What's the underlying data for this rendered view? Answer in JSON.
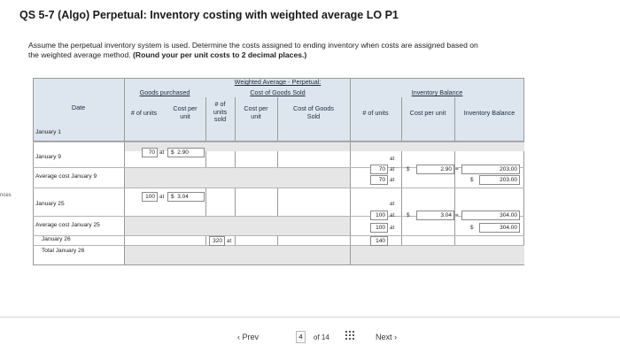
{
  "title": "QS 5-7 (Algo) Perpetual: Inventory costing with weighted average LO P1",
  "instructions": {
    "line1": "Assume the perpetual inventory system is used. Determine the costs assigned to ending inventory when costs are assigned based on",
    "line2_plain": "the weighted average method. ",
    "line2_bold": "(Round your per unit costs to 2 decimal places.)"
  },
  "left_edge_text": "nces",
  "table": {
    "header": {
      "group_title_line1": "Weighted Average - Perpetual:",
      "date": "Date",
      "goods_purchased": "Goods purchased",
      "gp_units": "# of units",
      "gp_cost_line1": "Cost per",
      "gp_cost_line2": "unit",
      "cogs_title": "Cost of Goods Sold",
      "cogs_units_line1": "# of",
      "cogs_units_line2": "units",
      "cogs_units_line3": "sold",
      "cogs_cost_line1": "Cost per",
      "cogs_cost_line2": "unit",
      "cogs_total_line1": "Cost of Goods",
      "cogs_total_line2": "Sold",
      "inv_title": "Inventory Balance",
      "inv_units": "# of units",
      "inv_cost": "Cost per unit",
      "inv_balance": "Inventory Balance"
    },
    "rows": {
      "jan1": "January 1",
      "jan9": "January 9",
      "avg_jan9": "Average cost January 9",
      "jan25": "January 25",
      "avg_jan25": "Average cost January 25",
      "jan26": "January 26",
      "total_jan26": "Total January 26"
    },
    "values": {
      "at": "at",
      "dollar": "$",
      "eq": "=",
      "jan9_units": "70",
      "jan9_cost": "2.90",
      "inv_jan9_units_a": "70",
      "inv_jan9_units_b": "70",
      "inv_jan9_cost": "2.90",
      "inv_jan9_bal_a": "203.00",
      "inv_jan9_bal_b": "203.00",
      "jan25_units": "100",
      "jan25_cost": "3.04",
      "inv_jan25_units_a": "100",
      "inv_jan25_units_b": "100",
      "inv_jan25_cost": "3.04",
      "inv_jan25_bal_a": "304.00",
      "inv_jan25_bal_b": "304.00",
      "jan26_sold": "320",
      "jan26_inv_units": "140"
    }
  },
  "pagination": {
    "prev": "Prev",
    "current": "4",
    "of": "of 14",
    "next": "Next"
  }
}
